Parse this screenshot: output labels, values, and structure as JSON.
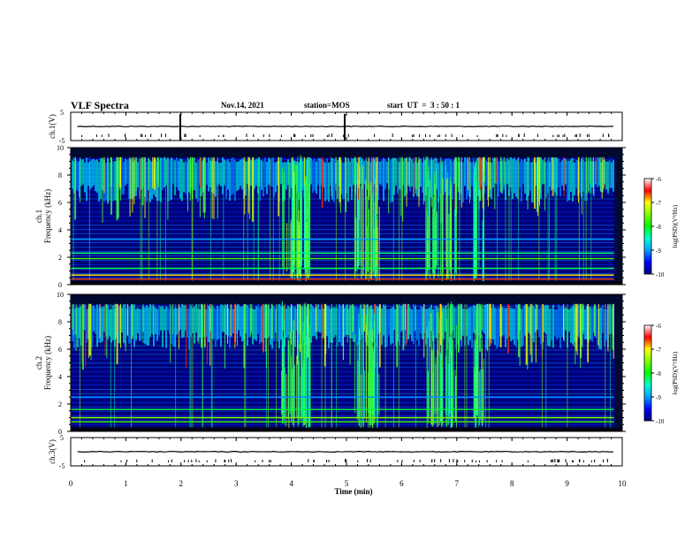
{
  "header": {
    "title": "VLF Spectra",
    "date": "Nov.14, 2021",
    "station": "station=MOS",
    "start": "start  UT  =  3 : 50 : 1"
  },
  "colors": {
    "colormap": [
      "#000080",
      "#0000ff",
      "#00a0ff",
      "#00ffd0",
      "#00ff00",
      "#80ff00",
      "#ffff00",
      "#ff0000",
      "#ffffff"
    ],
    "background": "#000a30",
    "trace": "#000000"
  },
  "chart_data": [
    {
      "type": "line",
      "panel": "ch1-waveform",
      "ylabel": "ch.1(V)",
      "ylim": [
        -5,
        5
      ],
      "yticks": [
        "5",
        "-5"
      ],
      "baseline": 0
    },
    {
      "type": "heatmap",
      "panel": "ch1-spectrogram",
      "ylabel_top": "ch.1",
      "ylabel": "Frequency (kHz)",
      "ylim": [
        0,
        10
      ],
      "yticks": [
        "0",
        "2",
        "4",
        "6",
        "8",
        "10"
      ],
      "xlim": [
        0,
        10
      ],
      "colorbar": {
        "label": "log(PSD)(V²/Hz)",
        "range": [
          -10,
          -6
        ],
        "ticks": [
          "-6",
          "-7",
          "-8",
          "-9",
          "-10"
        ]
      }
    },
    {
      "type": "heatmap",
      "panel": "ch2-spectrogram",
      "ylabel_top": "ch.2",
      "ylabel": "Frequency (kHz)",
      "ylim": [
        0,
        10
      ],
      "yticks": [
        "0",
        "2",
        "4",
        "6",
        "8",
        "10"
      ],
      "xlim": [
        0,
        10
      ],
      "colorbar": {
        "label": "log(PSD)(V²/Hz)",
        "range": [
          -10,
          -6
        ],
        "ticks": [
          "-6",
          "-7",
          "-8",
          "-9",
          "-10"
        ]
      }
    },
    {
      "type": "line",
      "panel": "ch3-waveform",
      "ylabel": "ch.3(V)",
      "ylim": [
        -5,
        5
      ],
      "yticks": [
        "5",
        "-5"
      ],
      "baseline": 0
    }
  ],
  "xaxis": {
    "label": "Time  (min)",
    "ticks": [
      "0",
      "1",
      "2",
      "3",
      "4",
      "5",
      "6",
      "7",
      "8",
      "9",
      "10"
    ]
  }
}
